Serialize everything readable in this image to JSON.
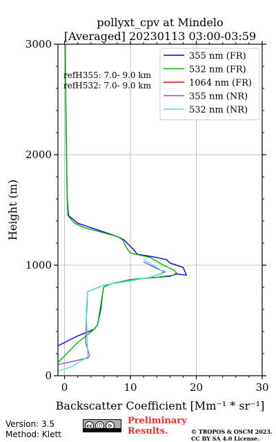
{
  "chart_data": {
    "type": "line",
    "title_line1": "pollyxt_cpv at Mindelo",
    "title_line2": "[Averaged] 20230113 03:00-03:59",
    "xlabel": "Backscatter Coefficient [Mm⁻¹ * sr⁻¹]",
    "ylabel": "Height (m)",
    "xlim": [
      -1,
      30
    ],
    "ylim": [
      0,
      3000
    ],
    "xticks": [
      0,
      10,
      20,
      30
    ],
    "yticks": [
      0,
      1000,
      2000,
      3000
    ],
    "grid": true,
    "legend_position": "top-right",
    "annotations": [
      "refH355:  7.0- 9.0 km",
      "refH532:  7.0- 9.0 km"
    ],
    "series": [
      {
        "name": "355 nm (FR)",
        "color": "#0000cc",
        "x": [
          -1.0,
          2.0,
          4.5,
          5.0,
          5.5,
          5.8,
          5.9,
          6.0,
          7.0,
          10.0,
          14.0,
          16.0,
          17.0,
          18.5,
          18.0,
          16.0,
          15.5,
          14.0,
          11.0,
          10.5,
          9.0,
          8.0,
          3.5,
          2.0,
          0.6,
          0.4,
          0.35,
          0.3,
          0.25,
          0.2,
          0.15,
          0.1
        ],
        "y": [
          270,
          360,
          420,
          460,
          600,
          750,
          790,
          805,
          830,
          870,
          890,
          900,
          920,
          910,
          980,
          1020,
          1050,
          1070,
          1100,
          1140,
          1230,
          1260,
          1350,
          1380,
          1450,
          1600,
          1800,
          2000,
          2200,
          2400,
          2700,
          3000
        ]
      },
      {
        "name": "532 nm (FR)",
        "color": "#00b400",
        "x": [
          -1.0,
          0.0,
          2.0,
          4.5,
          5.0,
          5.4,
          5.8,
          5.9,
          6.0,
          7.0,
          10.0,
          14.0,
          16.5,
          17.0,
          16.5,
          15.0,
          13.0,
          10.0,
          9.5,
          8.8,
          8.0,
          3.0,
          1.5,
          0.5,
          0.4,
          0.35,
          0.3,
          0.25,
          0.2,
          0.15,
          0.1
        ],
        "y": [
          120,
          180,
          300,
          420,
          460,
          600,
          750,
          790,
          805,
          830,
          870,
          890,
          910,
          930,
          960,
          1000,
          1070,
          1110,
          1150,
          1230,
          1260,
          1340,
          1380,
          1450,
          1600,
          1800,
          2000,
          2200,
          2400,
          2700,
          3000
        ]
      },
      {
        "name": "1064 nm (FR)",
        "color": "#dd0000",
        "x": [],
        "y": []
      },
      {
        "name": "355 nm (NR)",
        "color": "#a040e0",
        "x": [
          -1.0,
          3.5,
          3.8,
          3.2,
          3.3,
          3.5,
          6.0,
          10.0,
          13.0,
          14.5,
          15.3,
          14.0,
          12.0
        ],
        "y": [
          100,
          160,
          180,
          300,
          500,
          760,
          820,
          860,
          890,
          920,
          940,
          970,
          1030
        ]
      },
      {
        "name": "532 nm (NR)",
        "color": "#40e8c8",
        "x": [
          -1.0,
          1.0,
          3.5,
          3.5,
          3.4,
          3.3,
          3.5,
          6.0,
          10.0,
          13.0,
          14.5,
          15.0,
          14.0,
          12.0
        ],
        "y": [
          40,
          80,
          170,
          240,
          400,
          600,
          760,
          820,
          860,
          890,
          920,
          940,
          980,
          1050
        ]
      }
    ]
  },
  "footer": {
    "version": "Version: 3.5",
    "method": "Method: Klett",
    "preliminary_line1": "Preliminary",
    "preliminary_line2": "Results.",
    "copyright_line1": "© TROPOS & OSCM 2023.",
    "copyright_line2": "CC BY SA 4.0 License."
  }
}
